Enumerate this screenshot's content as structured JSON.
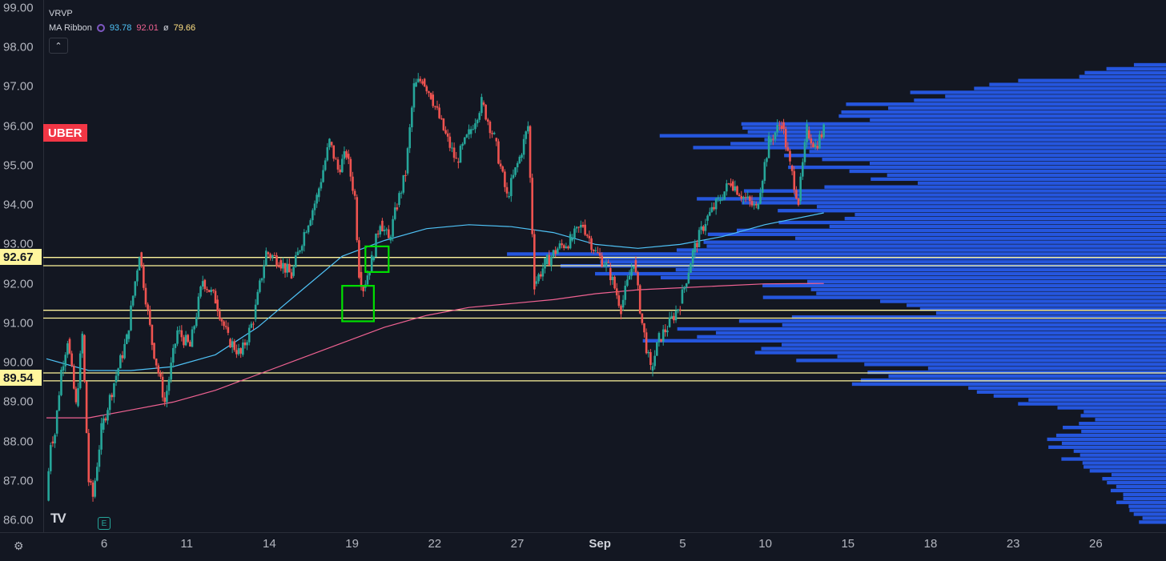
{
  "symbol": "UBER",
  "legend": {
    "vrvp_label": "VRVP",
    "ma_label": "MA Ribbon",
    "ma_values": [
      "93.78",
      "92.01",
      "79.66"
    ],
    "ma_sep": "ø"
  },
  "collapse_glyph": "⌃",
  "price_tags": [
    "92.67",
    "89.54"
  ],
  "watermark": "TV",
  "earnings_glyph": "E",
  "settings_glyph": "⚙",
  "colors": {
    "background": "#131722",
    "up": "#26a69a",
    "down": "#ef5350",
    "ma_fast": "#4fc3f7",
    "ma_slow": "#f06292",
    "volume_profile": "#2962ff",
    "level_line": "#fff59d",
    "highlight_box": "#00e000"
  },
  "chart_data": {
    "type": "candlestick",
    "y_axis": {
      "ticks": [
        "99.00",
        "98.00",
        "97.00",
        "96.00",
        "95.00",
        "94.00",
        "93.00",
        "92.00",
        "91.00",
        "90.00",
        "89.00",
        "88.00",
        "87.00",
        "86.00"
      ],
      "ylim": [
        85.7,
        99.2
      ]
    },
    "x_axis": {
      "ticks": [
        "6",
        "11",
        "14",
        "19",
        "22",
        "27",
        "Sep",
        "5",
        "10",
        "15",
        "18",
        "23",
        "26"
      ],
      "bold": [
        "Sep"
      ]
    },
    "price_path": [
      [
        0.0,
        86.5
      ],
      [
        0.1,
        88.0
      ],
      [
        0.2,
        88.2
      ],
      [
        0.35,
        89.8
      ],
      [
        0.5,
        90.6
      ],
      [
        0.7,
        88.9
      ],
      [
        0.85,
        90.7
      ],
      [
        1.0,
        87.0
      ],
      [
        1.1,
        86.6
      ],
      [
        1.3,
        88.3
      ],
      [
        1.6,
        89.5
      ],
      [
        1.9,
        90.6
      ],
      [
        2.2,
        92.8
      ],
      [
        2.5,
        90.5
      ],
      [
        2.8,
        89.0
      ],
      [
        3.1,
        90.8
      ],
      [
        3.4,
        90.4
      ],
      [
        3.7,
        92.1
      ],
      [
        4.0,
        91.6
      ],
      [
        4.3,
        90.6
      ],
      [
        4.6,
        90.2
      ],
      [
        4.9,
        91.1
      ],
      [
        5.2,
        92.8
      ],
      [
        5.5,
        92.6
      ],
      [
        5.8,
        92.2
      ],
      [
        6.1,
        93.3
      ],
      [
        6.4,
        94.2
      ],
      [
        6.7,
        95.6
      ],
      [
        6.9,
        94.9
      ],
      [
        7.1,
        95.3
      ],
      [
        7.3,
        94.2
      ],
      [
        7.4,
        92.3
      ],
      [
        7.5,
        91.9
      ],
      [
        7.7,
        92.6
      ],
      [
        7.9,
        93.6
      ],
      [
        8.1,
        93.1
      ],
      [
        8.3,
        94.0
      ],
      [
        8.5,
        94.8
      ],
      [
        8.7,
        97.0
      ],
      [
        8.9,
        97.2
      ],
      [
        9.1,
        96.8
      ],
      [
        9.4,
        95.9
      ],
      [
        9.7,
        95.1
      ],
      [
        10.0,
        95.8
      ],
      [
        10.3,
        96.6
      ],
      [
        10.6,
        95.7
      ],
      [
        10.9,
        94.2
      ],
      [
        11.2,
        95.2
      ],
      [
        11.4,
        96.0
      ],
      [
        11.55,
        92.0
      ],
      [
        11.8,
        92.5
      ],
      [
        12.1,
        92.9
      ],
      [
        12.4,
        93.1
      ],
      [
        12.7,
        93.5
      ],
      [
        13.0,
        92.8
      ],
      [
        13.3,
        92.4
      ],
      [
        13.6,
        91.4
      ],
      [
        13.9,
        92.6
      ],
      [
        14.1,
        91.0
      ],
      [
        14.3,
        89.8
      ],
      [
        14.5,
        90.6
      ],
      [
        14.7,
        90.9
      ],
      [
        15.0,
        91.5
      ],
      [
        15.3,
        92.8
      ],
      [
        15.6,
        93.6
      ],
      [
        15.9,
        94.1
      ],
      [
        16.2,
        94.6
      ],
      [
        16.5,
        94.2
      ],
      [
        16.8,
        93.9
      ],
      [
        17.1,
        95.6
      ],
      [
        17.4,
        96.1
      ],
      [
        17.6,
        95.0
      ],
      [
        17.8,
        94.1
      ],
      [
        18.0,
        95.9
      ],
      [
        18.2,
        95.5
      ],
      [
        18.4,
        95.9
      ]
    ],
    "ma_fast": [
      [
        0.0,
        90.1
      ],
      [
        1.0,
        89.8
      ],
      [
        2.0,
        89.8
      ],
      [
        3.0,
        89.9
      ],
      [
        4.0,
        90.2
      ],
      [
        5.0,
        90.9
      ],
      [
        6.0,
        91.8
      ],
      [
        7.0,
        92.7
      ],
      [
        8.0,
        93.1
      ],
      [
        9.0,
        93.4
      ],
      [
        10.0,
        93.5
      ],
      [
        11.0,
        93.45
      ],
      [
        12.0,
        93.3
      ],
      [
        13.0,
        93.0
      ],
      [
        14.0,
        92.9
      ],
      [
        15.0,
        93.0
      ],
      [
        16.0,
        93.2
      ],
      [
        17.0,
        93.5
      ],
      [
        18.4,
        93.8
      ]
    ],
    "ma_slow": [
      [
        0.0,
        88.6
      ],
      [
        1.0,
        88.6
      ],
      [
        2.0,
        88.8
      ],
      [
        3.0,
        89.0
      ],
      [
        4.0,
        89.3
      ],
      [
        5.0,
        89.7
      ],
      [
        6.0,
        90.1
      ],
      [
        7.0,
        90.5
      ],
      [
        8.0,
        90.9
      ],
      [
        9.0,
        91.2
      ],
      [
        10.0,
        91.4
      ],
      [
        11.0,
        91.5
      ],
      [
        12.0,
        91.6
      ],
      [
        13.0,
        91.75
      ],
      [
        14.0,
        91.85
      ],
      [
        15.0,
        91.9
      ],
      [
        16.0,
        91.95
      ],
      [
        17.0,
        92.0
      ],
      [
        18.4,
        92.01
      ]
    ],
    "horizontal_levels": [
      92.67,
      92.46,
      91.33,
      91.13,
      89.74,
      89.54
    ],
    "highlight_boxes": [
      {
        "x0": 7.55,
        "x1": 8.1,
        "y_top": 92.95,
        "y_bottom": 92.3
      },
      {
        "x0": 7.0,
        "x1": 7.75,
        "y_top": 91.95,
        "y_bottom": 91.05
      }
    ],
    "volume_profile": {
      "price_lo": 85.8,
      "price_hi": 97.6,
      "bins": 118,
      "anchors": [
        [
          97.6,
          0.02
        ],
        [
          97.3,
          0.08
        ],
        [
          96.8,
          0.22
        ],
        [
          96.3,
          0.28
        ],
        [
          96.0,
          0.35
        ],
        [
          95.7,
          0.43
        ],
        [
          95.3,
          0.33
        ],
        [
          95.0,
          0.3
        ],
        [
          94.6,
          0.24
        ],
        [
          94.1,
          0.42
        ],
        [
          93.8,
          0.27
        ],
        [
          93.5,
          0.34
        ],
        [
          93.1,
          0.38
        ],
        [
          92.8,
          0.48
        ],
        [
          92.6,
          0.55
        ],
        [
          92.3,
          0.48
        ],
        [
          92.0,
          0.35
        ],
        [
          91.6,
          0.3
        ],
        [
          91.3,
          0.19
        ],
        [
          91.0,
          0.4
        ],
        [
          90.7,
          0.42
        ],
        [
          90.4,
          0.39
        ],
        [
          90.1,
          0.3
        ],
        [
          89.8,
          0.24
        ],
        [
          89.5,
          0.27
        ],
        [
          89.2,
          0.15
        ],
        [
          88.9,
          0.11
        ],
        [
          88.6,
          0.06
        ],
        [
          88.3,
          0.09
        ],
        [
          88.0,
          0.1
        ],
        [
          87.5,
          0.08
        ],
        [
          87.0,
          0.05
        ],
        [
          86.5,
          0.04
        ],
        [
          85.9,
          0.02
        ]
      ]
    },
    "x_range": [
      0,
      26.5
    ],
    "title": "",
    "xlabel": "",
    "ylabel": ""
  }
}
